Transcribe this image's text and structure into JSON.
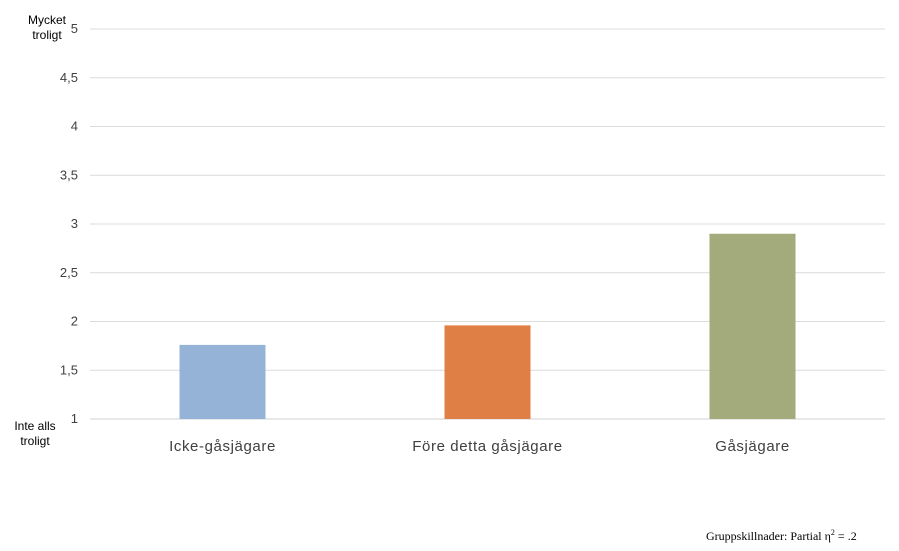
{
  "chart_data": {
    "type": "bar",
    "categories": [
      "Icke-gåsjägare",
      "Före detta gåsjägare",
      "Gåsjägare"
    ],
    "values": [
      1.76,
      1.96,
      2.9
    ],
    "colors": [
      "#95b3d7",
      "#e07f45",
      "#a3aa7b"
    ],
    "ylim": [
      1,
      5
    ],
    "yticks": [
      "1",
      "1,5",
      "2",
      "2,5",
      "3",
      "3,5",
      "4",
      "4,5",
      "5"
    ],
    "ytick_values": [
      1,
      1.5,
      2,
      2.5,
      3,
      3.5,
      4,
      4.5,
      5
    ],
    "y_top_label_lines": [
      "Mycket",
      "troligt"
    ],
    "y_bottom_label_lines": [
      "Inte alls",
      "troligt"
    ],
    "grid": true,
    "footnote": "Gruppskillnader: Partial η",
    "footnote_sup": "2",
    "footnote_tail": " = .2"
  }
}
